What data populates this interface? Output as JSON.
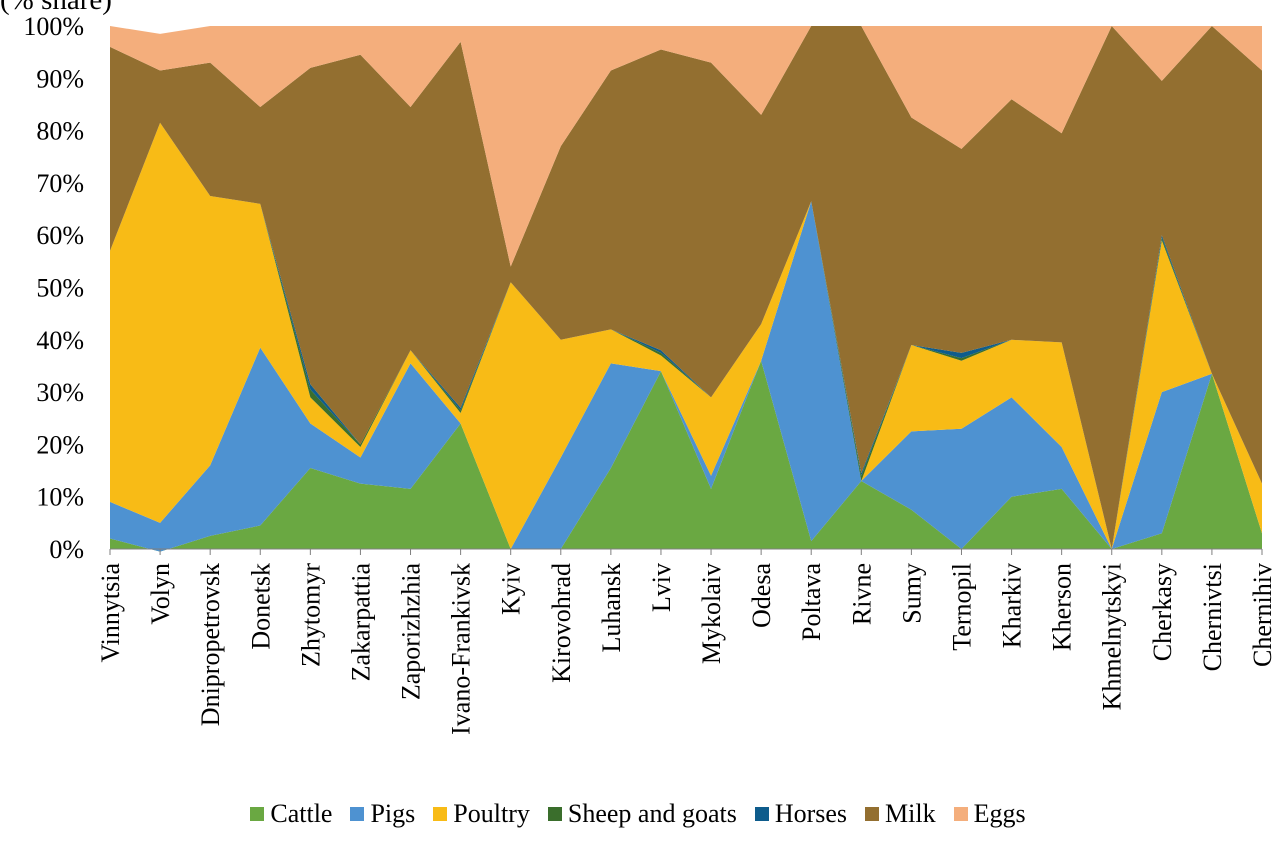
{
  "partial_title": "(% share)",
  "chart_data": {
    "type": "area",
    "stacked": "percent",
    "categories": [
      "Vinnytsia",
      "Volyn",
      "Dnipropetrovsk",
      "Donetsk",
      "Zhytomyr",
      "Zakarpattia",
      "Zaporizhzhia",
      "Ivano-Frankivsk",
      "Kyiv",
      "Kirovohrad",
      "Luhansk",
      "Lviv",
      "Mykolaiv",
      "Odesa",
      "Poltava",
      "Rivne",
      "Sumy",
      "Ternopil",
      "Kharkiv",
      "Kherson",
      "Khmelnytskyi",
      "Cherkasy",
      "Chernivtsi",
      "Chernihiv"
    ],
    "ylim": [
      0,
      100
    ],
    "yticks": [
      "0%",
      "10%",
      "20%",
      "30%",
      "40%",
      "50%",
      "60%",
      "70%",
      "80%",
      "90%",
      "100%"
    ],
    "grid": false,
    "legend_position": "bottom",
    "series": [
      {
        "name": "Cattle",
        "color": "#6aa842",
        "values": [
          2,
          -0.5,
          2.5,
          4.5,
          15.5,
          12.5,
          11.5,
          24,
          0,
          0,
          15.5,
          34,
          11.5,
          36,
          1.5,
          13,
          7.5,
          0,
          10,
          11.5,
          0,
          3,
          33.5,
          3
        ]
      },
      {
        "name": "Pigs",
        "color": "#4e92d1",
        "values": [
          7,
          5.5,
          13.5,
          34,
          8.5,
          5,
          24,
          0,
          0,
          17.5,
          20,
          0,
          2.5,
          0,
          65,
          0,
          15,
          23,
          19,
          8,
          0,
          27,
          0,
          0
        ]
      },
      {
        "name": "Poultry",
        "color": "#f8bb16",
        "values": [
          48,
          76.5,
          51.5,
          27.5,
          5,
          2,
          2.5,
          2,
          51,
          22.5,
          6.5,
          3,
          15,
          7,
          0,
          0,
          16.5,
          13,
          11,
          20,
          0,
          29,
          0,
          9.5
        ]
      },
      {
        "name": "Sheep and goats",
        "color": "#3a6e2c",
        "values": [
          0,
          0,
          0,
          0,
          1.5,
          0.5,
          0,
          0.5,
          0,
          0,
          0,
          0.5,
          0,
          0,
          0,
          1,
          0,
          0.5,
          0,
          0,
          0,
          0.5,
          0,
          0
        ]
      },
      {
        "name": "Horses",
        "color": "#0e5c8c",
        "values": [
          0,
          0,
          0,
          0,
          1,
          0,
          0,
          0.5,
          0,
          0,
          0,
          0.5,
          0,
          0,
          0,
          0.5,
          0,
          1,
          0,
          0,
          0,
          0.5,
          0,
          0
        ]
      },
      {
        "name": "Milk",
        "color": "#936f30",
        "values": [
          39,
          10,
          25.5,
          18.5,
          60.5,
          74.5,
          46.5,
          70,
          3,
          37,
          49.5,
          57.5,
          64,
          40,
          33.5,
          85.5,
          43.5,
          39,
          46,
          40,
          100,
          29.5,
          66.5,
          79
        ]
      },
      {
        "name": "Eggs",
        "color": "#f4ae7c",
        "values": [
          4,
          7,
          7,
          15.5,
          8,
          5.5,
          15.5,
          3,
          46,
          23,
          8.5,
          4.5,
          7,
          17,
          0,
          0,
          17.5,
          23.5,
          14,
          20.5,
          0,
          10.5,
          0,
          8.5
        ]
      }
    ]
  }
}
